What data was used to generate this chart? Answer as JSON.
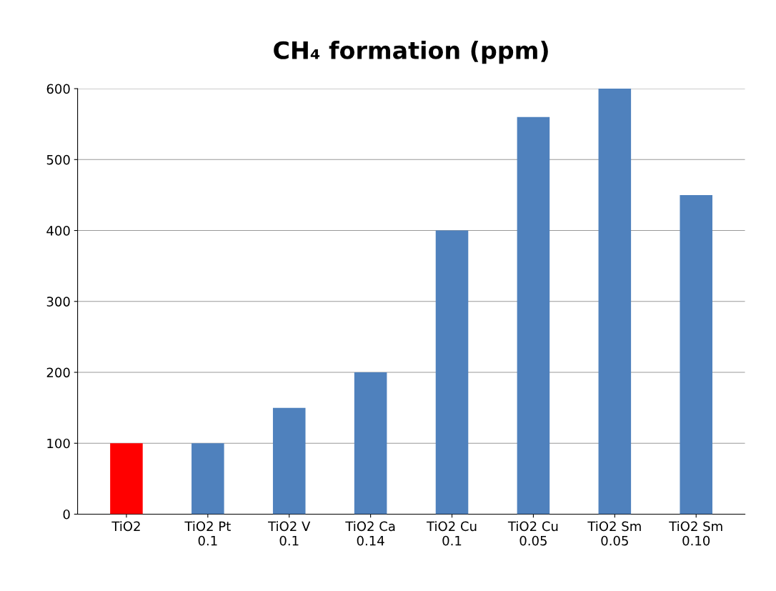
{
  "chart_data": {
    "type": "bar",
    "title": "CH₄ formation (ppm)",
    "categories": [
      "TiO2",
      "TiO2 Pt\n0.1",
      "TiO2 V\n0.1",
      "TiO2 Ca\n0.14",
      "TiO2 Cu\n0.1",
      "TiO2 Cu\n0.05",
      "TiO2 Sm\n0.05",
      "TiO2 Sm\n0.10"
    ],
    "values": [
      100,
      100,
      150,
      200,
      400,
      560,
      600,
      450
    ],
    "colors": [
      "#ff0000",
      "#4f81bd",
      "#4f81bd",
      "#4f81bd",
      "#4f81bd",
      "#4f81bd",
      "#4f81bd",
      "#4f81bd"
    ],
    "ylim": [
      0,
      600
    ],
    "yticks": [
      0,
      100,
      200,
      300,
      400,
      500,
      600
    ],
    "grid": "y"
  }
}
